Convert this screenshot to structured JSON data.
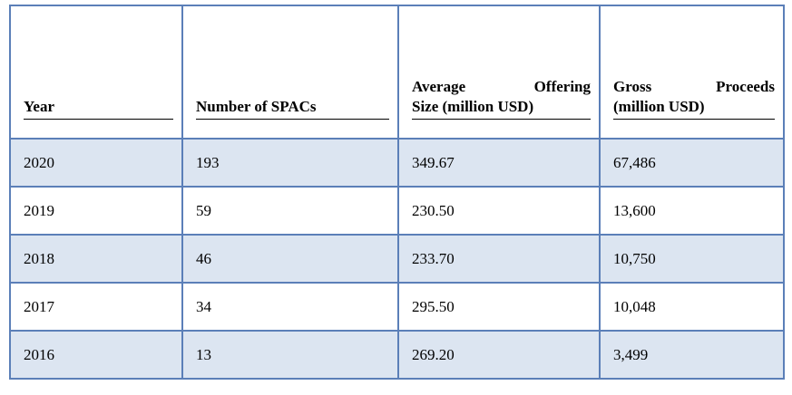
{
  "table": {
    "headers": {
      "year": "Year",
      "number": "Number of SPACs",
      "avg_line1": "Average Offering",
      "avg_line2": "Size (million USD)",
      "gross_line1": "Gross Proceeds",
      "gross_line2": "(million USD)"
    },
    "rows": [
      {
        "year": "2020",
        "number": "193",
        "avg": "349.67",
        "gross": "67,486"
      },
      {
        "year": "2019",
        "number": "59",
        "avg": "230.50",
        "gross": "13,600"
      },
      {
        "year": "2018",
        "number": "46",
        "avg": "233.70",
        "gross": "10,750"
      },
      {
        "year": "2017",
        "number": "34",
        "avg": "295.50",
        "gross": "10,048"
      },
      {
        "year": "2016",
        "number": "13",
        "avg": "269.20",
        "gross": "3,499"
      }
    ],
    "colors": {
      "border": "#5b7fb8",
      "shaded_row": "#dce5f1",
      "text": "#000000"
    }
  }
}
